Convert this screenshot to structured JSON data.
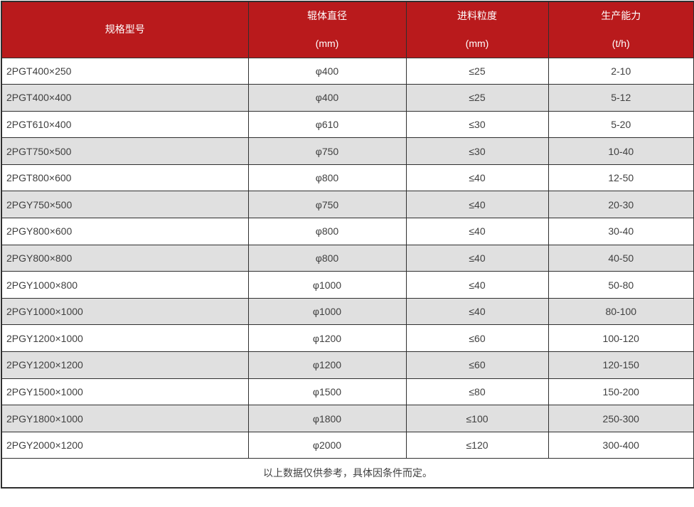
{
  "colors": {
    "header_bg": "#b91a1c",
    "header_text": "#ffffff",
    "row_bg": "#ffffff",
    "row_alt_bg": "#e0e0e0",
    "grid_border": "#2f2f2f",
    "body_text": "#404040"
  },
  "table": {
    "headers": [
      {
        "line1": "规格型号",
        "line2": ""
      },
      {
        "line1": "辊体直径",
        "line2": "(mm)"
      },
      {
        "line1": "进料粒度",
        "line2": "(mm)"
      },
      {
        "line1": "生产能力",
        "line2": "(t/h)"
      }
    ],
    "rows": [
      [
        "2PGT400×250",
        "φ400",
        "≤25",
        "2-10"
      ],
      [
        "2PGT400×400",
        "φ400",
        "≤25",
        "5-12"
      ],
      [
        "2PGT610×400",
        "φ610",
        "≤30",
        "5-20"
      ],
      [
        "2PGT750×500",
        "φ750",
        "≤30",
        "10-40"
      ],
      [
        "2PGT800×600",
        "φ800",
        "≤40",
        "12-50"
      ],
      [
        "2PGY750×500",
        "φ750",
        "≤40",
        "20-30"
      ],
      [
        "2PGY800×600",
        "φ800",
        "≤40",
        "30-40"
      ],
      [
        "2PGY800×800",
        "φ800",
        "≤40",
        "40-50"
      ],
      [
        "2PGY1000×800",
        "φ1000",
        "≤40",
        "50-80"
      ],
      [
        "2PGY1000×1000",
        "φ1000",
        "≤40",
        "80-100"
      ],
      [
        "2PGY1200×1000",
        "φ1200",
        "≤60",
        "100-120"
      ],
      [
        "2PGY1200×1200",
        "φ1200",
        "≤60",
        "120-150"
      ],
      [
        "2PGY1500×1000",
        "φ1500",
        "≤80",
        "150-200"
      ],
      [
        "2PGY1800×1000",
        "φ1800",
        "≤100",
        "250-300"
      ],
      [
        "2PGY2000×1200",
        "φ2000",
        "≤120",
        "300-400"
      ]
    ],
    "footer": "以上数据仅供参考，具体因条件而定。"
  },
  "chart_data": {
    "type": "table",
    "title": "",
    "columns": [
      "规格型号",
      "辊体直径 (mm)",
      "进料粒度 (mm)",
      "生产能力 (t/h)"
    ],
    "rows": [
      [
        "2PGT400×250",
        "φ400",
        "≤25",
        "2-10"
      ],
      [
        "2PGT400×400",
        "φ400",
        "≤25",
        "5-12"
      ],
      [
        "2PGT610×400",
        "φ610",
        "≤30",
        "5-20"
      ],
      [
        "2PGT750×500",
        "φ750",
        "≤30",
        "10-40"
      ],
      [
        "2PGT800×600",
        "φ800",
        "≤40",
        "12-50"
      ],
      [
        "2PGY750×500",
        "φ750",
        "≤40",
        "20-30"
      ],
      [
        "2PGY800×600",
        "φ800",
        "≤40",
        "30-40"
      ],
      [
        "2PGY800×800",
        "φ800",
        "≤40",
        "40-50"
      ],
      [
        "2PGY1000×800",
        "φ1000",
        "≤40",
        "50-80"
      ],
      [
        "2PGY1000×1000",
        "φ1000",
        "≤40",
        "80-100"
      ],
      [
        "2PGY1200×1000",
        "φ1200",
        "≤60",
        "100-120"
      ],
      [
        "2PGY1200×1200",
        "φ1200",
        "≤60",
        "120-150"
      ],
      [
        "2PGY1500×1000",
        "φ1500",
        "≤80",
        "150-200"
      ],
      [
        "2PGY1800×1000",
        "φ1800",
        "≤100",
        "250-300"
      ],
      [
        "2PGY2000×1200",
        "φ2000",
        "≤120",
        "300-400"
      ]
    ],
    "note": "以上数据仅供参考，具体因条件而定。",
    "layout": {
      "header_style": "red background, white text, unit on second line",
      "zebra_striping": true,
      "first_column_align": "left",
      "other_columns_align": "center"
    }
  }
}
